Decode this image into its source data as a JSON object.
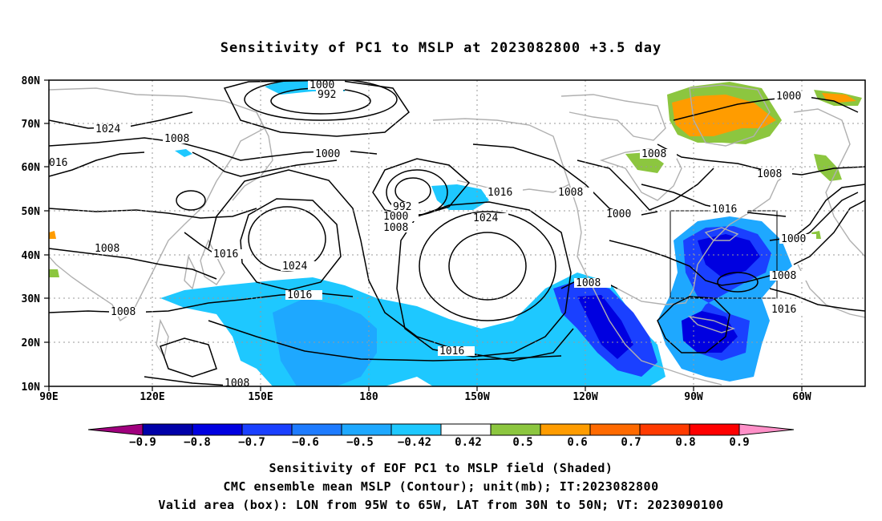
{
  "title": "Sensitivity of PC1 to MSLP at 2023082800 +3.5 day",
  "lat_labels": [
    "80N",
    "70N",
    "60N",
    "50N",
    "40N",
    "30N",
    "20N",
    "10N"
  ],
  "lon_labels": [
    "90E",
    "120E",
    "150E",
    "180",
    "150W",
    "120W",
    "90W",
    "60W"
  ],
  "contour_labels": [
    "1000",
    "992",
    "1024",
    "1008",
    "1000",
    "016",
    "1016",
    "1008",
    "992",
    "1000",
    "1008",
    "1024",
    "1016",
    "1008",
    "1000",
    "1008",
    "1008",
    "1016",
    "1024",
    "1008",
    "1016",
    "1008",
    "1008",
    "1000",
    "1008",
    "1016",
    "1016"
  ],
  "colorbar": {
    "ticks": [
      "−0.9",
      "−0.8",
      "−0.7",
      "−0.6",
      "−0.5",
      "−0.42",
      "0.42",
      "0.5",
      "0.6",
      "0.7",
      "0.8",
      "0.9"
    ],
    "colors": [
      "#a0007e",
      "#0000a8",
      "#0000e0",
      "#1a40ff",
      "#1e7bff",
      "#1ea8ff",
      "#1ec8ff",
      "#ffffff",
      "#8cc63f",
      "#ff9c00",
      "#ff6a00",
      "#ff3a00",
      "#ff0000",
      "#ff90c8"
    ]
  },
  "validation_box": {
    "lon_from": "95W",
    "lon_to": "65W",
    "lat_from": "30N",
    "lat_to": "50N"
  },
  "captions": [
    "Sensitivity of EOF PC1 to MSLP field (Shaded)",
    "CMC ensemble mean MSLP (Contour); unit(mb); IT:2023082800",
    "Valid area (box): LON from 95W to 65W, LAT from 30N to 50N; VT: 2023090100"
  ]
}
